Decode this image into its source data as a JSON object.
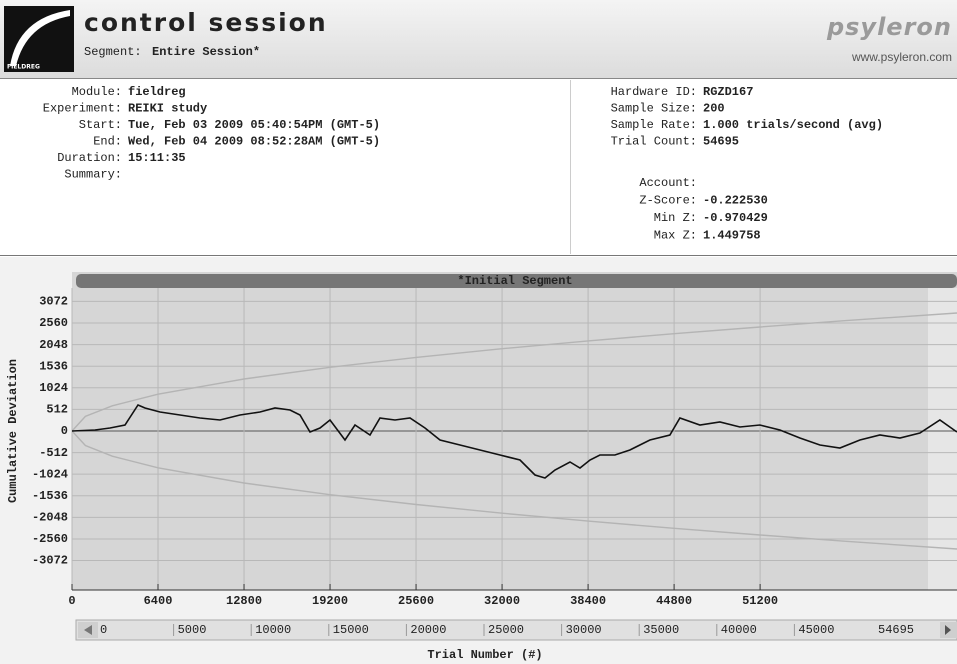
{
  "header": {
    "logo_text": "FIELDREG",
    "title": "control session",
    "segment_label": "Segment:",
    "segment": "Entire Session*",
    "brand": "psyleron",
    "url": "www.psyleron.com"
  },
  "info_left": [
    {
      "label": "Module:",
      "value": "fieldreg"
    },
    {
      "label": "Experiment:",
      "value": "REIKI study"
    },
    {
      "label": "Start:",
      "value": "Tue, Feb 03 2009 05:40:54PM (GMT-5)"
    },
    {
      "label": "End:",
      "value": "Wed, Feb 04 2009 08:52:28AM (GMT-5)"
    },
    {
      "label": "Duration:",
      "value": "15:11:35"
    },
    {
      "label": "Summary:"
    }
  ],
  "info_right": [
    {
      "label": "Hardware ID:",
      "value": "RGZD167"
    },
    {
      "label": "Sample Size:",
      "value": "200"
    },
    {
      "label": "Sample Rate:",
      "value": "1.000 trials/second (avg)"
    },
    {
      "label": "Trial Count:",
      "value": "54695"
    }
  ],
  "stats": [
    {
      "label": "Account:"
    },
    {
      "label": "Z-Score:",
      "value": "-0.222530"
    },
    {
      "label": "Min Z:",
      "value": "-0.970429"
    },
    {
      "label": "Max Z:",
      "value": "1.449758"
    }
  ],
  "chart_data": {
    "type": "line",
    "segment_title": "*Initial Segment",
    "xlabel": "Trial Number (#)",
    "ylabel": "Cumulative Deviation",
    "xlim": [
      0,
      65850
    ],
    "ylim": [
      -3770,
      3390
    ],
    "xticks": [
      0,
      6400,
      12800,
      19200,
      25600,
      32000,
      38400,
      44800,
      51200
    ],
    "yticks": [
      3072,
      2560,
      2048,
      1536,
      1024,
      512,
      0,
      -512,
      -1024,
      -1536,
      -2048,
      -2560,
      -3072
    ],
    "grid": true,
    "series": [
      {
        "color": "#b4b4b4",
        "x": [
          0,
          1000,
          3000,
          6400,
          12800,
          19200,
          25600,
          32000,
          38400,
          44800,
          51200,
          57600,
          65850
        ],
        "values": [
          0,
          345,
          597,
          872,
          1233,
          1510,
          1744,
          1950,
          2136,
          2307,
          2466,
          2616,
          2797
        ]
      },
      {
        "color": "#b4b4b4",
        "x": [
          0,
          1000,
          3000,
          6400,
          12800,
          19200,
          25600,
          32000,
          38400,
          44800,
          51200,
          57600,
          65850
        ],
        "values": [
          0,
          -345,
          -597,
          -872,
          -1233,
          -1510,
          -1744,
          -1950,
          -2136,
          -2307,
          -2466,
          -2616,
          -2797
        ]
      },
      {
        "color": "#111111",
        "x": [
          0,
          1711,
          2827,
          3943,
          4910,
          5431,
          6547,
          8035,
          9523,
          11011,
          12499,
          13987,
          15103,
          16219,
          16963,
          17707,
          18451,
          19195,
          20311,
          21055,
          22171,
          22915,
          24031,
          25147,
          26263,
          27379,
          28867,
          30355,
          31843,
          33331,
          34447,
          35191,
          35935,
          37051,
          37795,
          38539,
          39283,
          40399,
          41515,
          43003,
          44491,
          45235,
          46723,
          48211,
          49699,
          51187,
          52675,
          54163,
          55651,
          57139,
          58627,
          60115,
          61603,
          63091,
          64579,
          65844
        ],
        "values": [
          0,
          24,
          71,
          142,
          616,
          545,
          450,
          379,
          308,
          261,
          379,
          450,
          545,
          498,
          379,
          -24,
          71,
          261,
          -213,
          142,
          -95,
          308,
          261,
          308,
          71,
          -213,
          -332,
          -450,
          -569,
          -687,
          -1043,
          -1114,
          -924,
          -735,
          -877,
          -687,
          -569,
          -569,
          -450,
          -213,
          -95,
          308,
          142,
          213,
          95,
          142,
          24,
          -166,
          -332,
          -403,
          -213,
          -95,
          -166,
          -47,
          261,
          -24
        ]
      }
    ]
  },
  "scrollbar": {
    "labels": [
      "0",
      "5000",
      "10000",
      "15000",
      "20000",
      "25000",
      "30000",
      "35000",
      "40000",
      "45000",
      "54695"
    ]
  }
}
